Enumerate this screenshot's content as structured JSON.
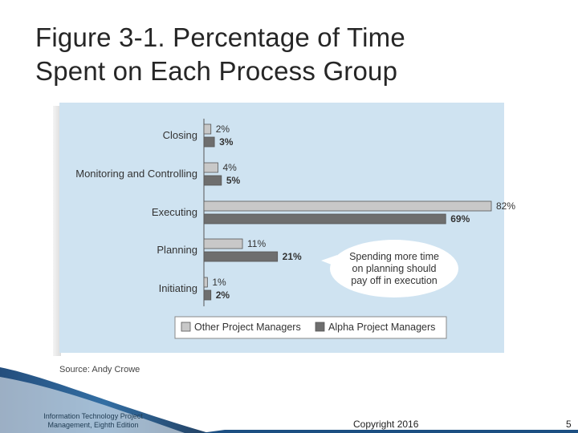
{
  "slide": {
    "title_line1": "Figure 3-1. Percentage of Time",
    "title_line2": "Spent on Each Process Group",
    "source": "Source: Andy Crowe",
    "footer_line1": "Information Technology Project",
    "footer_line2": "Management, Eighth Edition",
    "copyright": "Copyright 2016",
    "page_number": "5"
  },
  "chart_data": {
    "type": "bar",
    "orientation": "horizontal",
    "categories": [
      "Closing",
      "Monitoring and Controlling",
      "Executing",
      "Planning",
      "Initiating"
    ],
    "series": [
      {
        "name": "Other Project Managers",
        "values": [
          2,
          4,
          82,
          11,
          1
        ],
        "color": "#c8c8c8"
      },
      {
        "name": "Alpha Project Managers",
        "values": [
          3,
          5,
          69,
          21,
          2
        ],
        "color": "#6e6e6e"
      }
    ],
    "value_suffix": "%",
    "xlim": [
      0,
      82
    ],
    "legend_position": "bottom",
    "annotation": [
      "Spending more time",
      "on planning should",
      "pay off in execution"
    ],
    "colors": {
      "panel": "#cfe3f1",
      "annotation_bg": "#ffffff"
    }
  }
}
